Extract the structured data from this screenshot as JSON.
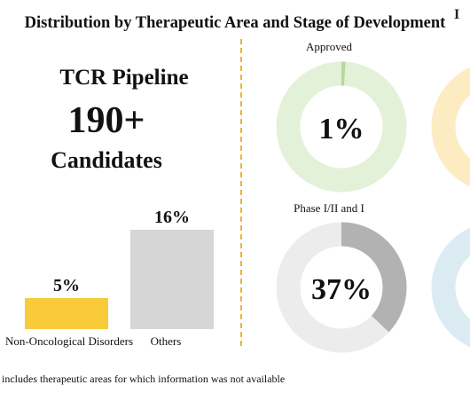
{
  "title": "Distribution by Therapeutic Area and Stage of Development",
  "logo_fragment": "I",
  "pipeline": {
    "heading": "TCR Pipeline",
    "count": "190+",
    "unit": "Candidates"
  },
  "footnote": "includes therapeutic areas for which information was not available",
  "colors": {
    "divider": "#f0b232",
    "bar_yellow": "#f9cb3b",
    "bar_gray": "#d6d6d6",
    "donut_green": "#b5d99a",
    "donut_green_bg": "#e4f1d9",
    "donut_gray": "#b2b2b2",
    "donut_gray_bg": "#ececec",
    "donut_yellow_bg": "#fdebc2",
    "donut_blue_bg": "#dbebf2"
  },
  "chart_data": [
    {
      "type": "bar",
      "categories": [
        "Non-Oncological Disorders",
        "Others"
      ],
      "values": [
        5,
        16
      ],
      "data_labels": [
        "5%",
        "16%"
      ],
      "ylim": [
        0,
        16
      ]
    },
    {
      "type": "pie",
      "subtype": "donut",
      "label": "Approved",
      "value": 1,
      "center_label": "1%"
    },
    {
      "type": "pie",
      "subtype": "donut",
      "label": "Phase I/II and I",
      "value": 37,
      "center_label": "37%"
    }
  ]
}
